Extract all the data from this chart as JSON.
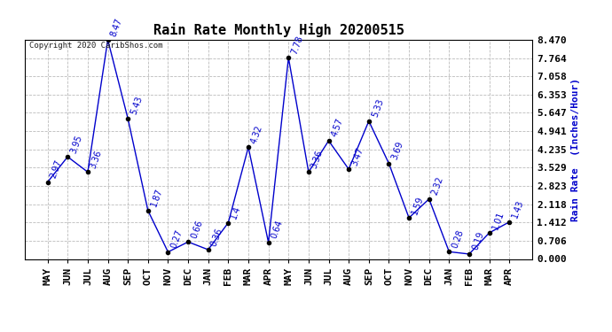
{
  "title": "Rain Rate Monthly High 20200515",
  "ylabel": "Rain Rate  (Inches/Hour)",
  "categories": [
    "MAY",
    "JUN",
    "JUL",
    "AUG",
    "SEP",
    "OCT",
    "NOV",
    "DEC",
    "JAN",
    "FEB",
    "MAR",
    "APR",
    "MAY",
    "JUN",
    "JUL",
    "AUG",
    "SEP",
    "OCT",
    "NOV",
    "DEC",
    "JAN",
    "FEB",
    "MAR",
    "APR"
  ],
  "values": [
    2.97,
    3.95,
    3.36,
    8.47,
    5.43,
    1.87,
    0.27,
    0.66,
    0.36,
    1.4,
    4.32,
    0.64,
    7.78,
    3.36,
    4.57,
    3.47,
    5.33,
    3.69,
    1.59,
    2.32,
    0.28,
    0.19,
    1.01,
    1.43
  ],
  "line_color": "#0000cc",
  "marker_color": "#000000",
  "grid_color": "#bbbbbb",
  "bg_color": "#ffffff",
  "title_fontsize": 11,
  "label_fontsize": 8,
  "tick_fontsize": 8,
  "annot_fontsize": 7,
  "copyright_text": "Copyright 2020 CaribShos.com",
  "ylim": [
    0.0,
    8.47
  ],
  "yticks": [
    0.0,
    0.706,
    1.412,
    2.118,
    2.823,
    3.529,
    4.235,
    4.941,
    5.647,
    6.353,
    7.058,
    7.764,
    8.47
  ]
}
